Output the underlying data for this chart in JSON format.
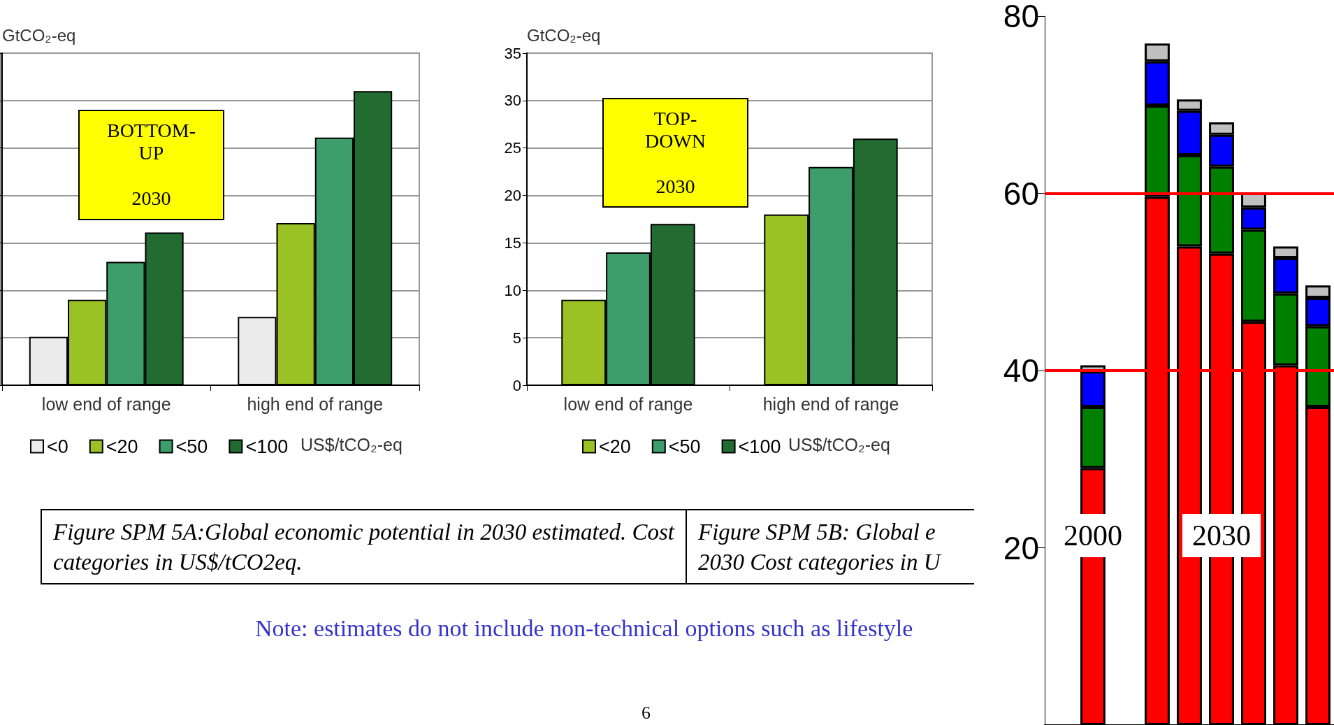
{
  "chart_data": [
    {
      "type": "bar",
      "ylabel": "GtCO₂-eq",
      "categories": [
        "low end of range",
        "high end of range"
      ],
      "series": [
        {
          "name": "<0",
          "color": "#ececec",
          "values": [
            5.1,
            7.2
          ]
        },
        {
          "name": "<20",
          "color": "#9bc224",
          "values": [
            9.0,
            17.1
          ]
        },
        {
          "name": "<50",
          "color": "#3e9e6b",
          "values": [
            13.0,
            26.1
          ]
        },
        {
          "name": "<100",
          "color": "#226b31",
          "values": [
            16.1,
            31.0
          ]
        }
      ],
      "ylim": [
        0,
        35
      ],
      "yticks": [
        0,
        5,
        10,
        15,
        20,
        25,
        30,
        35
      ],
      "tick_labels": "x",
      "grid": "y",
      "legend": "bottom",
      "legend_title": "US$/tCO₂-eq",
      "annotations": [
        "BOTTOM-\nUP\n\n2030",
        "Figure SPM 5A:Global economic potential in 2030 estimated. Cost categories in US$/tCO2eq."
      ]
    },
    {
      "type": "bar",
      "ylabel": "GtCO₂-eq",
      "categories": [
        "low end of range",
        "high end of range"
      ],
      "series": [
        {
          "name": "<20",
          "color": "#9bc224",
          "values": [
            9,
            18
          ]
        },
        {
          "name": "<50",
          "color": "#3e9e6b",
          "values": [
            14,
            23
          ]
        },
        {
          "name": "<100",
          "color": "#226b31",
          "values": [
            17,
            26
          ]
        }
      ],
      "ylim": [
        0,
        35
      ],
      "yticks": [
        0,
        5,
        10,
        15,
        20,
        25,
        30,
        35
      ],
      "grid": "y",
      "legend": "bottom",
      "legend_title": "US$/tCO₂-eq",
      "annotations": [
        "TOP-\nDOWN\n\n2030",
        "Figure SPM 5B: Global e\n2030 Cost categories in U",
        "Note: estimates do not include non-technical options such as lifestyle",
        "6"
      ]
    },
    {
      "type": "bar",
      "stacked": true,
      "categories": [
        null,
        "2000",
        null,
        null,
        null,
        "2030",
        null,
        null,
        null
      ],
      "series": [
        {
          "color": "#ff0000",
          "values": [
            null,
            29.0,
            null,
            59.6,
            54.0,
            53.2,
            45.5,
            40.6,
            35.9
          ]
        },
        {
          "color": "#008000",
          "values": [
            null,
            6.9,
            null,
            10.3,
            10.3,
            9.8,
            10.4,
            8.1,
            9.1
          ]
        },
        {
          "color": "#0000ff",
          "values": [
            null,
            4.0,
            null,
            5.0,
            5.0,
            3.6,
            2.5,
            4.0,
            3.2
          ]
        },
        {
          "color": "#c0c0c0",
          "values": [
            null,
            0.7,
            null,
            2.0,
            1.3,
            1.4,
            1.7,
            1.3,
            1.4
          ]
        }
      ],
      "ylim": [
        0,
        80
      ],
      "yticks": [
        20,
        40,
        60,
        80
      ],
      "ref_lines": [
        {
          "axis": "y",
          "value": 60,
          "color": "#ff0000"
        },
        {
          "axis": "y",
          "value": 40,
          "color": "#ff0000"
        }
      ]
    }
  ]
}
